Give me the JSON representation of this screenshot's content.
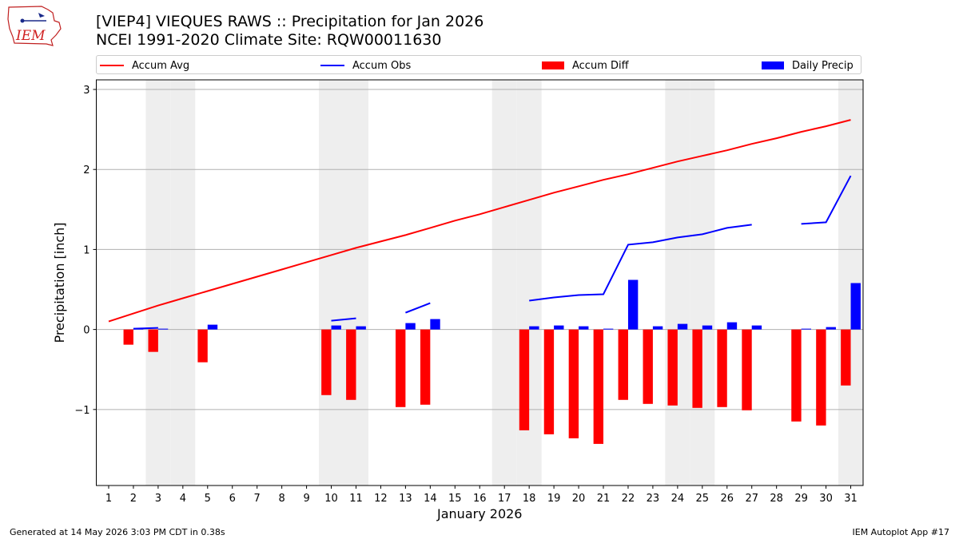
{
  "title_line1": "[VIEP4] VIEQUES RAWS :: Precipitation for Jan 2026",
  "title_line2": "NCEI 1991-2020 Climate Site: RQW00011630",
  "logo_text": "IEM",
  "footer_left": "Generated at 14 May 2026 3:03 PM CDT in 0.38s",
  "footer_right": "IEM Autoplot App #17",
  "colors": {
    "avg": "#ff0000",
    "obs": "#0000ff",
    "diff": "#ff0000",
    "daily": "#0000ff",
    "weekend": "#eeeeee",
    "grid": "#b0b0b0"
  },
  "chart_data": {
    "type": "bar",
    "xlabel": "January 2026",
    "ylabel": "Precipitation [inch]",
    "ylim": [
      -1.95,
      3.12
    ],
    "yticks": [
      -1,
      0,
      1,
      2,
      3
    ],
    "ytick_labels": [
      "−1",
      "0",
      "1",
      "2",
      "3"
    ],
    "x": [
      1,
      2,
      3,
      4,
      5,
      6,
      7,
      8,
      9,
      10,
      11,
      12,
      13,
      14,
      15,
      16,
      17,
      18,
      19,
      20,
      21,
      22,
      23,
      24,
      25,
      26,
      27,
      28,
      29,
      30,
      31
    ],
    "grid": true,
    "legend_position": "top",
    "weekend_days": [
      3,
      4,
      10,
      11,
      17,
      18,
      24,
      25,
      31
    ],
    "series": [
      {
        "name": "Accum Avg",
        "kind": "line",
        "values": [
          0.1,
          0.2,
          0.3,
          0.39,
          0.48,
          0.57,
          0.66,
          0.75,
          0.84,
          0.93,
          1.02,
          1.1,
          1.18,
          1.27,
          1.36,
          1.44,
          1.53,
          1.62,
          1.71,
          1.79,
          1.87,
          1.94,
          2.02,
          2.1,
          2.17,
          2.24,
          2.32,
          2.39,
          2.47,
          2.54,
          2.62
        ]
      },
      {
        "name": "Accum Obs",
        "kind": "line",
        "values": [
          null,
          0.01,
          0.02,
          null,
          null,
          null,
          null,
          null,
          null,
          0.11,
          0.14,
          null,
          0.21,
          0.33,
          null,
          null,
          null,
          0.36,
          0.4,
          0.43,
          0.44,
          1.06,
          1.09,
          1.15,
          1.19,
          1.27,
          1.31,
          null,
          1.32,
          1.34,
          1.92
        ]
      },
      {
        "name": "Accum Diff",
        "kind": "bar",
        "values": [
          null,
          -0.19,
          -0.28,
          null,
          -0.41,
          null,
          null,
          null,
          null,
          -0.82,
          -0.88,
          null,
          -0.97,
          -0.94,
          null,
          null,
          null,
          -1.26,
          -1.31,
          -1.36,
          -1.43,
          -0.88,
          -0.93,
          -0.95,
          -0.98,
          -0.97,
          -1.01,
          null,
          -1.15,
          -1.2,
          -0.7
        ]
      },
      {
        "name": "Daily Precip",
        "kind": "bar",
        "values": [
          null,
          0.01,
          0.01,
          null,
          0.06,
          null,
          null,
          null,
          null,
          0.05,
          0.04,
          null,
          0.08,
          0.13,
          null,
          null,
          null,
          0.04,
          0.05,
          0.04,
          0.01,
          0.62,
          0.04,
          0.07,
          0.05,
          0.09,
          0.05,
          null,
          0.01,
          0.03,
          0.58
        ]
      }
    ]
  }
}
